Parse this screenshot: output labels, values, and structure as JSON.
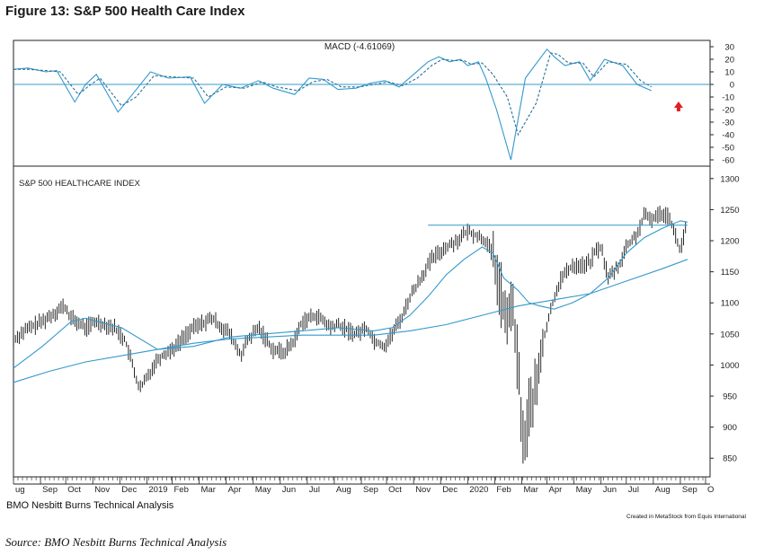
{
  "figure_title": "Figure 13: S&P 500 Health Care Index",
  "left_caption": "BMO Nesbitt Burns Technical Analysis",
  "right_caption": "Created in MetaStock from Equis International",
  "source_caption": "Source: BMO Nesbitt Burns Technical Analysis",
  "colors": {
    "price_bars": "#111111",
    "moving_averages": "#3399cc",
    "macd": "#3399cc",
    "reference_lines": "#3399cc",
    "arrow": "#e02020"
  },
  "chart_data": [
    {
      "type": "line",
      "title": "MACD (-4.61069)",
      "ylim": [
        -65,
        35
      ],
      "yticks": [
        30,
        20,
        10,
        0,
        -10,
        -20,
        -30,
        -40,
        -50,
        -60
      ],
      "reference_line": 0,
      "marker": "red up-arrow below latest MACD low",
      "series": [
        {
          "style": "solid",
          "x": [
            0,
            4,
            9,
            12,
            17,
            20,
            23,
            29,
            33,
            38,
            43,
            49,
            53,
            58,
            63,
            68,
            72,
            78,
            82,
            86,
            90,
            95,
            99,
            103,
            107,
            111,
            115,
            118,
            121,
            124,
            126,
            129,
            131,
            134,
            138,
            142,
            148,
            150,
            153,
            157,
            160,
            164,
            169,
            173,
            177
          ],
          "values": [
            12,
            13,
            10,
            11,
            -14,
            0,
            8,
            -22,
            -8,
            10,
            5,
            6,
            -15,
            0,
            -3,
            3,
            -3,
            -8,
            5,
            4,
            -4,
            -3,
            1,
            3,
            -2,
            8,
            18,
            22,
            18,
            20,
            15,
            18,
            5,
            -20,
            -60,
            5,
            28,
            22,
            15,
            18,
            3,
            20,
            15,
            0,
            -5
          ]
        },
        {
          "style": "dashed",
          "x": [
            0,
            4,
            9,
            13,
            18,
            21,
            24,
            30,
            34,
            39,
            44,
            50,
            54,
            59,
            64,
            69,
            73,
            79,
            83,
            87,
            91,
            96,
            100,
            104,
            108,
            112,
            116,
            119,
            122,
            125,
            127,
            130,
            133,
            137,
            140,
            145,
            149,
            151,
            154,
            158,
            161,
            165,
            170,
            174,
            177
          ],
          "values": [
            12,
            12,
            11,
            10,
            -8,
            -1,
            5,
            -17,
            -10,
            7,
            6,
            5,
            -10,
            -2,
            -3,
            2,
            -2,
            -5,
            2,
            4,
            -2,
            -2,
            0,
            2,
            -1,
            5,
            15,
            20,
            19,
            19,
            16,
            17,
            8,
            -10,
            -40,
            -15,
            25,
            24,
            17,
            17,
            6,
            18,
            16,
            3,
            -2
          ]
        }
      ]
    },
    {
      "type": "bar",
      "title": "S&P 500 HEALTHCARE INDEX",
      "ylim": [
        820,
        1320
      ],
      "yticks": [
        1300,
        1250,
        1200,
        1150,
        1100,
        1050,
        1000,
        950,
        900,
        850
      ],
      "x_tick_labels": [
        "ug",
        "Sep",
        "Oct",
        "Nov",
        "Dec",
        "2019",
        "Feb",
        "Mar",
        "Apr",
        "May",
        "Jun",
        "Jul",
        "Aug",
        "Sep",
        "Oct",
        "Nov",
        "Dec",
        "2020",
        "Feb",
        "Mar",
        "Apr",
        "May",
        "Jun",
        "Jul",
        "Aug",
        "Sep",
        "O"
      ],
      "x_tick_positions": [
        0,
        7.5,
        14.5,
        22,
        29.5,
        37,
        44,
        51.5,
        59,
        66.5,
        74,
        81.5,
        89,
        96.5,
        103.5,
        111,
        118.5,
        126,
        133.5,
        141,
        148,
        155.5,
        163,
        170,
        177.5,
        185,
        192
      ],
      "resistance_line": {
        "value": 1225,
        "x_from": 115,
        "x_to": 187
      },
      "price_path": {
        "x": [
          0,
          3,
          8,
          14,
          16,
          20,
          23,
          28,
          31,
          33,
          35,
          38,
          40,
          45,
          48,
          50,
          55,
          58,
          60,
          63,
          65,
          68,
          72,
          75,
          78,
          80,
          84,
          86,
          88,
          90,
          93,
          95,
          98,
          100,
          103,
          105,
          108,
          110,
          113,
          116,
          120,
          123,
          126,
          128,
          131,
          133,
          135,
          137,
          138,
          140,
          141,
          142,
          143,
          145,
          147,
          150,
          152,
          155,
          158,
          160,
          161,
          163,
          165,
          168,
          170,
          173,
          175,
          177,
          180,
          182,
          183,
          184,
          185,
          187
        ],
        "close": [
          1040,
          1055,
          1070,
          1095,
          1075,
          1060,
          1070,
          1060,
          1040,
          1000,
          960,
          990,
          1010,
          1030,
          1050,
          1060,
          1075,
          1060,
          1050,
          1015,
          1040,
          1060,
          1025,
          1020,
          1040,
          1070,
          1080,
          1070,
          1060,
          1065,
          1055,
          1050,
          1060,
          1040,
          1030,
          1050,
          1080,
          1110,
          1140,
          1170,
          1190,
          1200,
          1215,
          1210,
          1200,
          1175,
          1120,
          1060,
          1110,
          1000,
          900,
          870,
          930,
          960,
          1040,
          1110,
          1140,
          1160,
          1160,
          1165,
          1180,
          1190,
          1140,
          1160,
          1190,
          1210,
          1240,
          1235,
          1245,
          1240,
          1220,
          1200,
          1185,
          1230
        ]
      },
      "moving_average_short": {
        "x": [
          0,
          8,
          16,
          20,
          30,
          40,
          50,
          60,
          70,
          80,
          90,
          100,
          105,
          110,
          115,
          120,
          125,
          130,
          133,
          136,
          140,
          143,
          146,
          150,
          155,
          160,
          165,
          170,
          175,
          180,
          185,
          187
        ],
        "values": [
          995,
          1030,
          1070,
          1075,
          1060,
          1025,
          1030,
          1045,
          1050,
          1055,
          1060,
          1055,
          1060,
          1080,
          1110,
          1145,
          1170,
          1190,
          1180,
          1140,
          1120,
          1100,
          1095,
          1090,
          1100,
          1115,
          1140,
          1180,
          1205,
          1220,
          1232,
          1230
        ]
      },
      "moving_average_long": {
        "x": [
          0,
          10,
          20,
          30,
          40,
          50,
          60,
          70,
          80,
          90,
          100,
          110,
          120,
          130,
          140,
          150,
          160,
          170,
          180,
          187
        ],
        "values": [
          972,
          990,
          1005,
          1015,
          1025,
          1035,
          1042,
          1045,
          1048,
          1048,
          1048,
          1055,
          1065,
          1080,
          1095,
          1105,
          1115,
          1135,
          1155,
          1170
        ]
      }
    }
  ]
}
